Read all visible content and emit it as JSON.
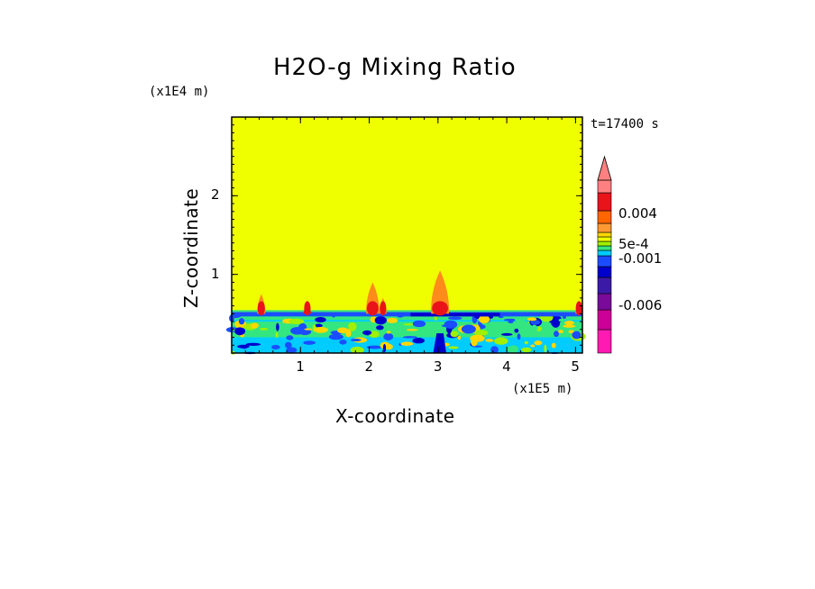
{
  "chart_data": {
    "type": "heatmap",
    "title": "H2O-g Mixing Ratio",
    "xlabel": "X-coordinate",
    "ylabel": "Z-coordinate",
    "x_unit": "(x1E5 m)",
    "y_unit": "(x1E4 m)",
    "time_label": "t=17400 s",
    "xlim": [
      0,
      5.1
    ],
    "ylim": [
      0,
      3.0
    ],
    "x_ticks": [
      1,
      2,
      3,
      4,
      5
    ],
    "y_ticks": [
      1,
      2
    ],
    "background_color": "#f0ff00",
    "boundary_layer_top": 0.5,
    "plumes": [
      {
        "x": 0.43,
        "z_top": 0.75,
        "color": "#ff8c1a"
      },
      {
        "x": 1.1,
        "z_top": 0.62,
        "color": "#e8141a"
      },
      {
        "x": 2.05,
        "z_top": 0.9,
        "color": "#ff8c1a"
      },
      {
        "x": 2.2,
        "z_top": 0.7,
        "color": "#ff8c1a"
      },
      {
        "x": 3.03,
        "z_top": 1.05,
        "color": "#ff8c1a"
      },
      {
        "x": 5.05,
        "z_top": 0.55,
        "color": "#ff8c1a"
      }
    ],
    "colorbar": {
      "levels_bottom_to_top": [
        "#ff1ab4",
        "#cc0099",
        "#7a0a9a",
        "#3b1aa8",
        "#0000cc",
        "#1a4dff",
        "#00ccff",
        "#33e680",
        "#a0f000",
        "#f0ff00",
        "#ffd700",
        "#ff9933",
        "#ff6600",
        "#e8141a",
        "#ff8080"
      ],
      "extend_top": true,
      "tick_labels": [
        "0.004",
        "5e-4",
        "-0.001",
        "-0.006"
      ]
    }
  }
}
